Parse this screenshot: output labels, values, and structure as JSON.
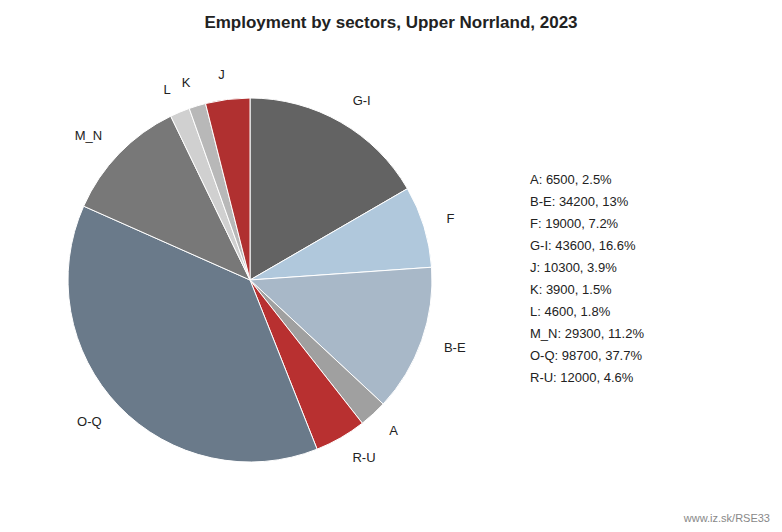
{
  "chart_data": {
    "type": "pie",
    "title": "Employment by sectors, Upper Norrland, 2023",
    "categories": [
      "G-I",
      "F",
      "B-E",
      "A",
      "R-U",
      "O-Q",
      "M_N",
      "L",
      "K",
      "J"
    ],
    "values": [
      43600,
      19000,
      34200,
      6500,
      12000,
      98700,
      29300,
      4600,
      3900,
      10300
    ],
    "colors": [
      "#636363",
      "#b0c8dc",
      "#a8b8c8",
      "#a0a0a0",
      "#b83030",
      "#6a7a8a",
      "#787878",
      "#d0d0d0",
      "#b8b8b8",
      "#b03030"
    ],
    "annotations": [
      "A: 6500, 2.5%",
      "B-E: 34200, 13%",
      "F: 19000, 7.2%",
      "G-I: 43600, 16.6%",
      "J: 10300, 3.9%",
      "K: 3900, 1.5%",
      "L: 4600, 1.8%",
      "M_N: 29300, 11.2%",
      "O-Q: 98700, 37.7%",
      "R-U: 12000, 4.6%"
    ],
    "source": "www.iz.sk/RSE33"
  }
}
